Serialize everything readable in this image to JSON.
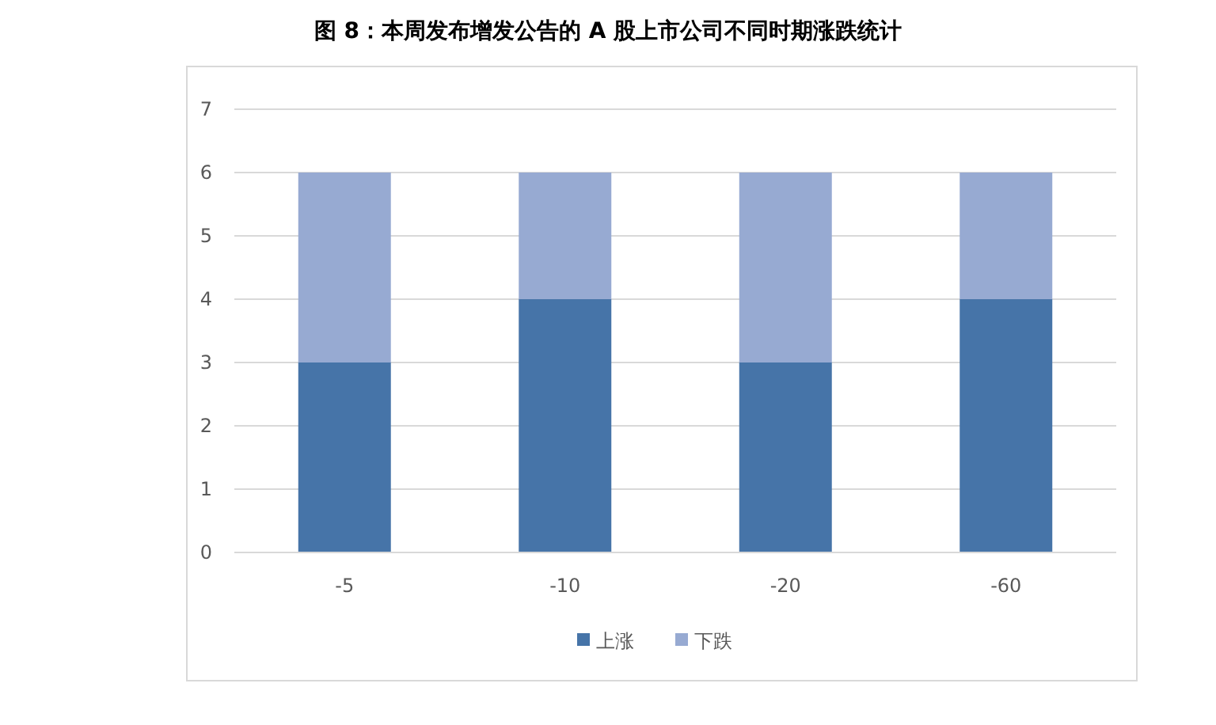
{
  "chart_data": {
    "type": "bar",
    "title": "图 8：本周发布增发公告的 A 股上市公司不同时期涨跌统计",
    "categories": [
      "-5",
      "-10",
      "-20",
      "-60"
    ],
    "stacked": true,
    "series": [
      {
        "name": "上涨",
        "color": "#4674a8",
        "values": [
          3,
          4,
          3,
          4
        ]
      },
      {
        "name": "下跌",
        "color": "#97aad2",
        "values": [
          3,
          2,
          3,
          2
        ]
      }
    ],
    "ylim": [
      0,
      7
    ],
    "yticks": [
      0,
      1,
      2,
      3,
      4,
      5,
      6,
      7
    ],
    "grid": "y",
    "legend": "bottom"
  }
}
